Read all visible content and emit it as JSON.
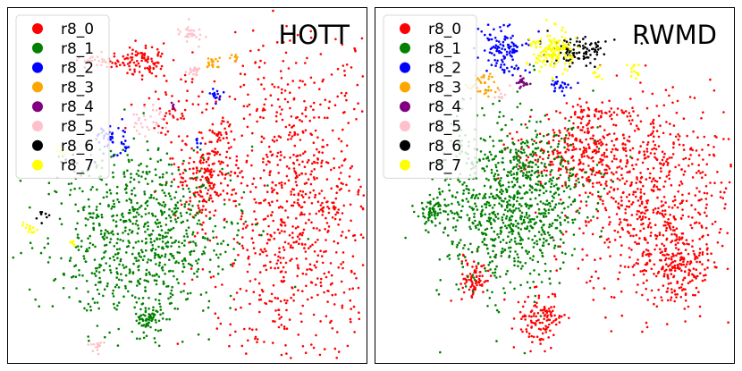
{
  "chart_data": [
    {
      "type": "scatter",
      "title": "HOTT",
      "legend_position": "top-left",
      "grid": false,
      "series": [
        {
          "name": "r8_0",
          "color": "#ff0000",
          "clusters": [
            {
              "cx": 0.8,
              "cy": 0.55,
              "sx": 0.12,
              "sy": 0.24,
              "n": 900
            },
            {
              "cx": 0.55,
              "cy": 0.49,
              "sx": 0.04,
              "sy": 0.06,
              "n": 160
            },
            {
              "cx": 0.38,
              "cy": 0.15,
              "sx": 0.03,
              "sy": 0.02,
              "n": 90
            },
            {
              "cx": 0.26,
              "cy": 0.15,
              "sx": 0.04,
              "sy": 0.01,
              "n": 40
            },
            {
              "cx": 0.48,
              "cy": 0.3,
              "sx": 0.06,
              "sy": 0.06,
              "n": 70
            },
            {
              "cx": 0.59,
              "cy": 0.35,
              "sx": 0.02,
              "sy": 0.02,
              "n": 25
            }
          ]
        },
        {
          "name": "r8_1",
          "color": "#008000",
          "clusters": [
            {
              "cx": 0.37,
              "cy": 0.64,
              "sx": 0.13,
              "sy": 0.12,
              "n": 800
            },
            {
              "cx": 0.4,
              "cy": 0.87,
              "sx": 0.02,
              "sy": 0.02,
              "n": 70
            }
          ]
        },
        {
          "name": "r8_2",
          "color": "#0000ff",
          "clusters": [
            {
              "cx": 0.29,
              "cy": 0.37,
              "sx": 0.02,
              "sy": 0.02,
              "n": 50
            },
            {
              "cx": 0.58,
              "cy": 0.25,
              "sx": 0.01,
              "sy": 0.01,
              "n": 15
            },
            {
              "cx": 0.53,
              "cy": 0.37,
              "sx": 0.01,
              "sy": 0.01,
              "n": 6
            }
          ]
        },
        {
          "name": "r8_3",
          "color": "#ffa500",
          "clusters": [
            {
              "cx": 0.57,
              "cy": 0.16,
              "sx": 0.01,
              "sy": 0.01,
              "n": 20
            },
            {
              "cx": 0.63,
              "cy": 0.14,
              "sx": 0.005,
              "sy": 0.005,
              "n": 8
            }
          ]
        },
        {
          "name": "r8_4",
          "color": "#800080",
          "clusters": [
            {
              "cx": 0.46,
              "cy": 0.28,
              "sx": 0.005,
              "sy": 0.005,
              "n": 6
            }
          ]
        },
        {
          "name": "r8_5",
          "color": "#ffc0cb",
          "clusters": [
            {
              "cx": 0.51,
              "cy": 0.07,
              "sx": 0.015,
              "sy": 0.015,
              "n": 30
            },
            {
              "cx": 0.52,
              "cy": 0.18,
              "sx": 0.01,
              "sy": 0.01,
              "n": 20
            },
            {
              "cx": 0.38,
              "cy": 0.32,
              "sx": 0.03,
              "sy": 0.02,
              "n": 30
            },
            {
              "cx": 0.25,
              "cy": 0.95,
              "sx": 0.015,
              "sy": 0.01,
              "n": 15
            }
          ]
        },
        {
          "name": "r8_6",
          "color": "#000000",
          "clusters": [
            {
              "cx": 0.1,
              "cy": 0.58,
              "sx": 0.01,
              "sy": 0.01,
              "n": 8
            },
            {
              "cx": 0.18,
              "cy": 0.43,
              "sx": 0.01,
              "sy": 0.01,
              "n": 5
            }
          ]
        },
        {
          "name": "r8_7",
          "color": "#ffff00",
          "clusters": [
            {
              "cx": 0.06,
              "cy": 0.62,
              "sx": 0.01,
              "sy": 0.01,
              "n": 15
            },
            {
              "cx": 0.18,
              "cy": 0.66,
              "sx": 0.005,
              "sy": 0.005,
              "n": 8
            },
            {
              "cx": 0.15,
              "cy": 0.4,
              "sx": 0.01,
              "sy": 0.01,
              "n": 10
            }
          ]
        }
      ]
    },
    {
      "type": "scatter",
      "title": "RWMD",
      "legend_position": "top-left",
      "grid": false,
      "series": [
        {
          "name": "r8_0",
          "color": "#ff0000",
          "clusters": [
            {
              "cx": 0.77,
              "cy": 0.55,
              "sx": 0.11,
              "sy": 0.14,
              "n": 700
            },
            {
              "cx": 0.55,
              "cy": 0.4,
              "sx": 0.08,
              "sy": 0.05,
              "n": 250
            },
            {
              "cx": 0.46,
              "cy": 0.88,
              "sx": 0.03,
              "sy": 0.04,
              "n": 120
            },
            {
              "cx": 0.28,
              "cy": 0.76,
              "sx": 0.02,
              "sy": 0.03,
              "n": 80
            },
            {
              "cx": 0.62,
              "cy": 0.3,
              "sx": 0.05,
              "sy": 0.02,
              "n": 60
            },
            {
              "cx": 0.84,
              "cy": 0.73,
              "sx": 0.04,
              "sy": 0.05,
              "n": 150
            }
          ]
        },
        {
          "name": "r8_1",
          "color": "#008000",
          "clusters": [
            {
              "cx": 0.38,
              "cy": 0.54,
              "sx": 0.1,
              "sy": 0.12,
              "n": 950
            },
            {
              "cx": 0.16,
              "cy": 0.58,
              "sx": 0.02,
              "sy": 0.02,
              "n": 60
            }
          ]
        },
        {
          "name": "r8_2",
          "color": "#0000ff",
          "clusters": [
            {
              "cx": 0.36,
              "cy": 0.12,
              "sx": 0.03,
              "sy": 0.03,
              "n": 120
            },
            {
              "cx": 0.51,
              "cy": 0.22,
              "sx": 0.02,
              "sy": 0.01,
              "n": 25
            }
          ]
        },
        {
          "name": "r8_3",
          "color": "#ffa500",
          "clusters": [
            {
              "cx": 0.3,
              "cy": 0.21,
              "sx": 0.02,
              "sy": 0.02,
              "n": 40
            }
          ]
        },
        {
          "name": "r8_4",
          "color": "#800080",
          "clusters": [
            {
              "cx": 0.41,
              "cy": 0.21,
              "sx": 0.01,
              "sy": 0.01,
              "n": 20
            }
          ]
        },
        {
          "name": "r8_5",
          "color": "#ffc0cb",
          "clusters": [
            {
              "cx": 0.35,
              "cy": 0.25,
              "sx": 0.01,
              "sy": 0.01,
              "n": 10
            }
          ]
        },
        {
          "name": "r8_6",
          "color": "#000000",
          "clusters": [
            {
              "cx": 0.57,
              "cy": 0.12,
              "sx": 0.04,
              "sy": 0.02,
              "n": 100
            }
          ]
        },
        {
          "name": "r8_7",
          "color": "#ffff00",
          "clusters": [
            {
              "cx": 0.49,
              "cy": 0.12,
              "sx": 0.03,
              "sy": 0.03,
              "n": 150
            },
            {
              "cx": 0.72,
              "cy": 0.18,
              "sx": 0.01,
              "sy": 0.01,
              "n": 15
            },
            {
              "cx": 0.62,
              "cy": 0.19,
              "sx": 0.01,
              "sy": 0.01,
              "n": 10
            }
          ]
        }
      ]
    }
  ]
}
